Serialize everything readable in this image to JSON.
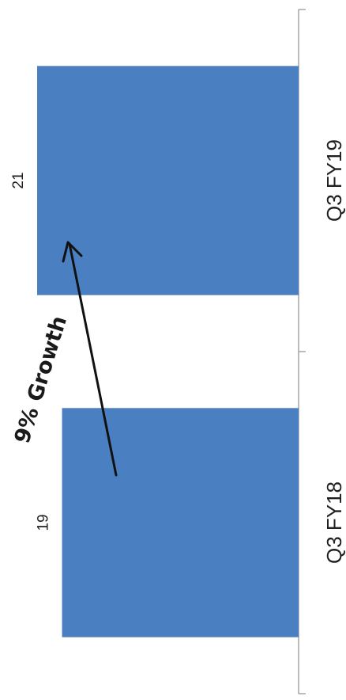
{
  "chart_data": {
    "type": "bar",
    "orientation": "horizontal",
    "categories": [
      "Q3 FY18",
      "Q3 FY19"
    ],
    "values": [
      19,
      21
    ],
    "data_labels": [
      "19",
      "21"
    ],
    "xlim": [
      0,
      24
    ],
    "title": "",
    "xlabel": "",
    "ylabel": "",
    "grid": false,
    "legend": "none",
    "bar_color": "#4a7fc1",
    "axis_color": "#a6a6a6",
    "annotation": {
      "text": "9% Growth",
      "arrow": true
    }
  }
}
